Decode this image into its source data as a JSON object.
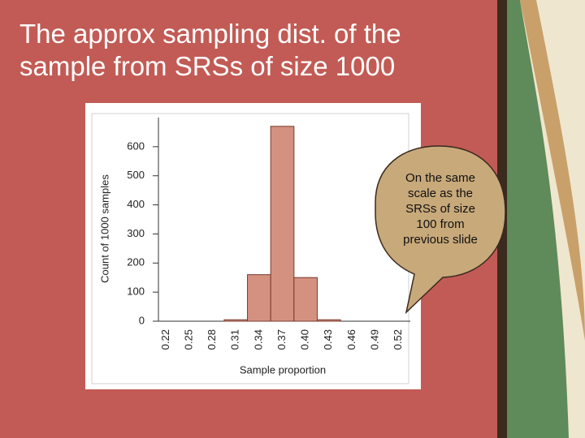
{
  "slide": {
    "title": "The approx sampling dist. of the sample from SRSs of size 1000",
    "callout": "On the same scale as the SRSs of size 100 from previous slide"
  },
  "chart_data": {
    "type": "bar",
    "categories": [
      "0.22",
      "0.25",
      "0.28",
      "0.31",
      "0.34",
      "0.37",
      "0.40",
      "0.43",
      "0.46",
      "0.49",
      "0.52"
    ],
    "values": [
      0,
      0,
      0,
      5,
      160,
      670,
      150,
      5,
      0,
      0,
      0
    ],
    "color": "#d4917f",
    "ylim": [
      0,
      700
    ],
    "yticks": [
      0,
      100,
      200,
      300,
      400,
      500,
      600
    ],
    "x_label": "Sample proportion",
    "y_label": "Count of 1000 samples"
  }
}
